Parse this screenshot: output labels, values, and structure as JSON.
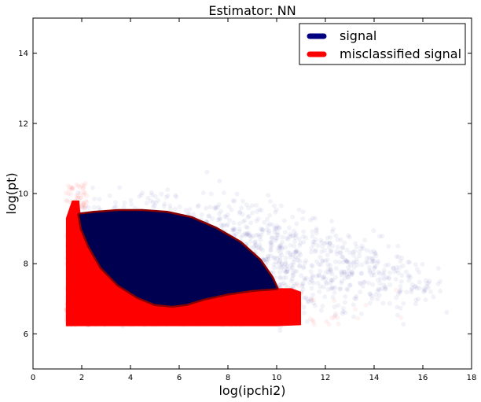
{
  "chart_data": {
    "type": "scatter",
    "title": "Estimator: NN",
    "xlabel": "log(ipchi2)",
    "ylabel": "log(pt)",
    "xlim": [
      0,
      18
    ],
    "ylim": [
      5,
      15
    ],
    "xticks": [
      "0",
      "2",
      "4",
      "6",
      "8",
      "10",
      "12",
      "14",
      "16",
      "18"
    ],
    "yticks": [
      "6",
      "8",
      "10",
      "12",
      "14"
    ],
    "grid": false,
    "legend_position": "top-right",
    "series": [
      {
        "name": "signal",
        "color": "#000080",
        "dense_region_outline": [
          [
            1.9,
            9.4
          ],
          [
            2.5,
            9.45
          ],
          [
            3.5,
            9.5
          ],
          [
            4.5,
            9.5
          ],
          [
            5.5,
            9.45
          ],
          [
            6.5,
            9.3
          ],
          [
            7.5,
            9.0
          ],
          [
            8.5,
            8.6
          ],
          [
            9.3,
            8.1
          ],
          [
            9.8,
            7.6
          ],
          [
            10.0,
            7.3
          ],
          [
            9.0,
            7.25
          ],
          [
            8.0,
            7.15
          ],
          [
            7.0,
            7.0
          ],
          [
            6.3,
            6.85
          ],
          [
            5.7,
            6.8
          ],
          [
            5.0,
            6.85
          ],
          [
            4.3,
            7.05
          ],
          [
            3.5,
            7.4
          ],
          [
            2.8,
            7.9
          ],
          [
            2.3,
            8.5
          ],
          [
            2.0,
            9.0
          ]
        ]
      },
      {
        "name": "misclassified signal",
        "color": "#ff0000",
        "dense_region_outline": [
          [
            1.35,
            9.3
          ],
          [
            1.6,
            9.8
          ],
          [
            1.9,
            9.8
          ],
          [
            2.0,
            9.0
          ],
          [
            2.3,
            8.5
          ],
          [
            2.8,
            7.9
          ],
          [
            3.5,
            7.4
          ],
          [
            4.3,
            7.05
          ],
          [
            5.0,
            6.85
          ],
          [
            5.7,
            6.8
          ],
          [
            6.3,
            6.85
          ],
          [
            7.0,
            7.0
          ],
          [
            8.0,
            7.15
          ],
          [
            9.0,
            7.25
          ],
          [
            10.0,
            7.3
          ],
          [
            10.6,
            7.3
          ],
          [
            11.0,
            7.2
          ],
          [
            11.0,
            6.25
          ],
          [
            10.0,
            6.22
          ],
          [
            8.0,
            6.22
          ],
          [
            5.0,
            6.22
          ],
          [
            3.0,
            6.22
          ],
          [
            1.35,
            6.22
          ]
        ]
      }
    ]
  }
}
